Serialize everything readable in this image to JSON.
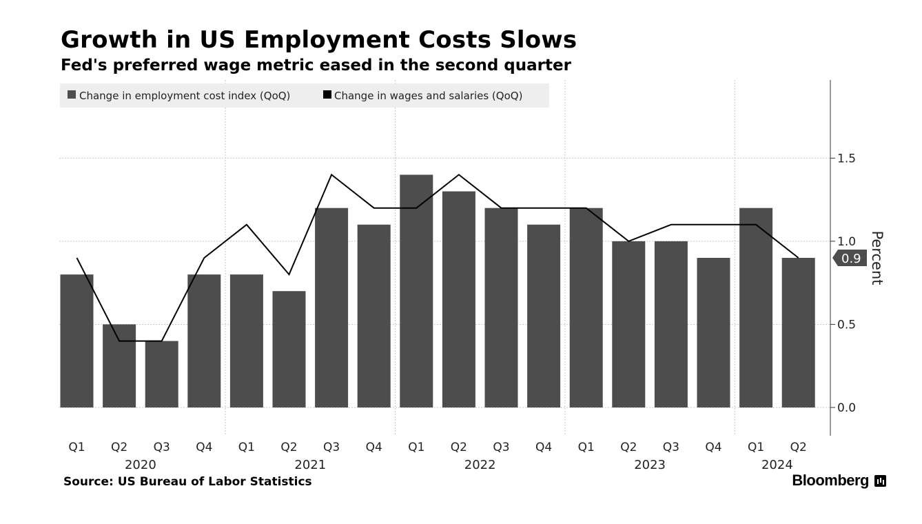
{
  "title": "Growth in US Employment Costs Slows",
  "subtitle": "Fed's preferred wage metric eased in the second quarter",
  "source": "Source: US Bureau of Labor Statistics",
  "brand": "Bloomberg",
  "colors": {
    "bars": "#4d4d4d",
    "line": "#000000",
    "grid": "#c8c8c8",
    "legend_bg": "#eeeeee"
  },
  "chart_data": {
    "type": "bar",
    "categories": [
      "Q1",
      "Q2",
      "Q3",
      "Q4",
      "Q1",
      "Q2",
      "Q3",
      "Q4",
      "Q1",
      "Q2",
      "Q3",
      "Q4",
      "Q1",
      "Q2",
      "Q3",
      "Q4",
      "Q1",
      "Q2"
    ],
    "years": [
      {
        "label": "2020",
        "start": 0,
        "end": 3
      },
      {
        "label": "2021",
        "start": 4,
        "end": 7
      },
      {
        "label": "2022",
        "start": 8,
        "end": 11
      },
      {
        "label": "2023",
        "start": 12,
        "end": 15
      },
      {
        "label": "2024",
        "start": 16,
        "end": 17
      }
    ],
    "series": [
      {
        "name": "Change in employment cost index (QoQ)",
        "type": "bar",
        "values": [
          0.8,
          0.5,
          0.4,
          0.8,
          0.8,
          0.7,
          1.2,
          1.1,
          1.4,
          1.3,
          1.2,
          1.1,
          1.2,
          1.0,
          1.0,
          0.9,
          1.2,
          0.9
        ]
      },
      {
        "name": "Change in wages and salaries (QoQ)",
        "type": "line",
        "values": [
          0.9,
          0.4,
          0.4,
          0.9,
          1.1,
          0.8,
          1.4,
          1.2,
          1.2,
          1.4,
          1.2,
          1.2,
          1.2,
          1.0,
          1.1,
          1.1,
          1.1,
          0.9
        ]
      }
    ],
    "ylabel": "Percent",
    "ylim": [
      -0.17,
      1.97
    ],
    "yticks": [
      "0.0",
      "0.5",
      "1.0",
      "1.5"
    ],
    "last_value_label": "0.9",
    "legend_position": "top-left",
    "grid": true,
    "yaxis_position": "right"
  }
}
